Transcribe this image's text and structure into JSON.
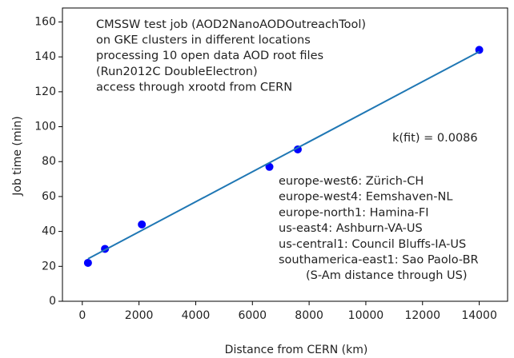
{
  "chart_data": {
    "type": "scatter",
    "x_label": "Distance from CERN (km)",
    "y_label": "Job time (min)",
    "xlim": [
      -700,
      15000
    ],
    "ylim": [
      0,
      168
    ],
    "xticks": [
      0,
      2000,
      4000,
      6000,
      8000,
      10000,
      12000,
      14000
    ],
    "yticks": [
      0,
      20,
      40,
      60,
      80,
      100,
      120,
      140,
      160
    ],
    "series": [
      {
        "type": "scatter",
        "color": "#0000ff",
        "x": [
          200,
          800,
          2100,
          6600,
          7600,
          14000
        ],
        "values": [
          22,
          30,
          44,
          77,
          87,
          144
        ]
      },
      {
        "type": "line",
        "color": "#1f77b4",
        "x": [
          200,
          14000
        ],
        "values": [
          24.3,
          143
        ]
      }
    ],
    "annotations": [
      {
        "lines": [
          "CMSSW test job (AOD2NanoAODOutreachTool)",
          "on GKE clusters in different locations",
          "processing 10 open data AOD root files",
          "(Run2012C DoubleElectron)",
          "access through xrootd from CERN"
        ]
      },
      {
        "lines": [
          "k(fit) = 0.0086"
        ]
      },
      {
        "lines": [
          "europe-west6: Zürich-CH",
          "europe-west4: Eemshaven-NL",
          "europe-north1: Hamina-FI",
          "us-east4: Ashburn-VA-US",
          "us-central1: Council Bluffs-IA-US",
          "southamerica-east1: Sao Paolo-BR",
          "(S-Am distance through US)"
        ]
      }
    ]
  }
}
